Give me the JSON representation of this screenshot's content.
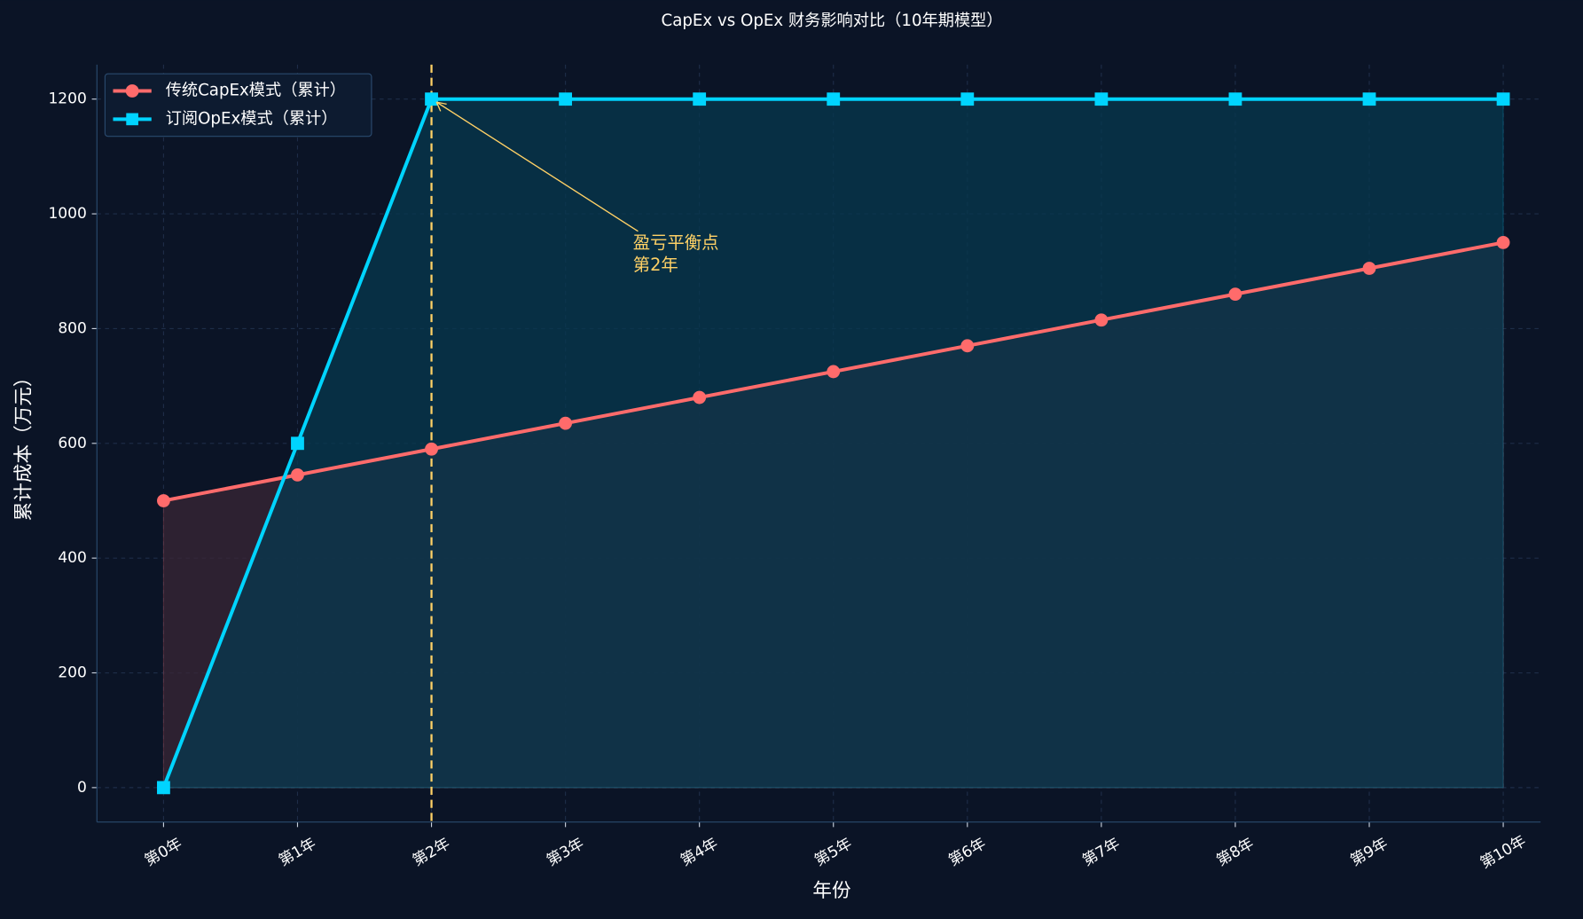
{
  "chart_data": {
    "type": "line",
    "title": "CapEx vs OpEx 财务影响对比（10年期模型）",
    "x_label": "年份",
    "y_label": "累计成本（万元）",
    "categories": [
      "第0年",
      "第1年",
      "第2年",
      "第3年",
      "第4年",
      "第5年",
      "第6年",
      "第7年",
      "第8年",
      "第9年",
      "第10年"
    ],
    "series": [
      {
        "name": "传统CapEx模式（累计）",
        "color": "#ff6b6b",
        "marker": "circle",
        "fill": "#3a2535",
        "values": [
          500,
          545,
          590,
          635,
          680,
          725,
          770,
          815,
          860,
          905,
          950
        ]
      },
      {
        "name": "订阅OpEx模式（累计）",
        "color": "#00d4ff",
        "marker": "square",
        "fill": "#07384f",
        "values": [
          0,
          600,
          1200,
          1200,
          1200,
          1200,
          1200,
          1200,
          1200,
          1200,
          1200
        ]
      }
    ],
    "ylim": [
      -60,
      1260
    ],
    "yticks": [
      0,
      200,
      400,
      600,
      800,
      1000,
      1200
    ],
    "grid": true,
    "legend": "upper left",
    "breakeven": {
      "category_index": 2,
      "value": 1200,
      "color": "#ffd166",
      "label_lines": [
        "盈亏平衡点",
        "第2年"
      ]
    }
  }
}
